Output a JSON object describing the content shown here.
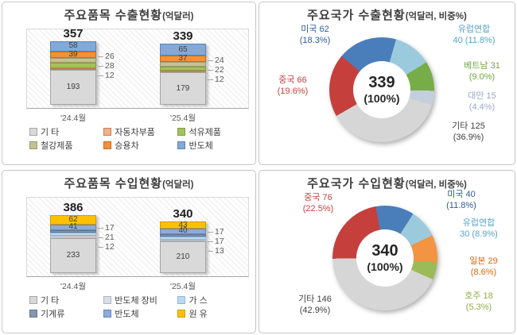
{
  "chart_data": [
    {
      "id": "export_items",
      "type": "bar",
      "stacked": true,
      "title": "주요품목 수출현황",
      "title_suffix": "(억달러)",
      "categories": [
        "'24.4월",
        "'25.4월"
      ],
      "totals": [
        "357",
        "339"
      ],
      "ylim": [
        0,
        420
      ],
      "grid": false,
      "legend_position": "bottom",
      "series": [
        {
          "name": "기 타",
          "color": "#d9d9d9",
          "border": "#a6a6a6",
          "values": [
            193,
            179
          ],
          "label_pos": "inside"
        },
        {
          "name": "자동차부품",
          "color": "#f0b18c",
          "border": "#cf7a52",
          "values": [
            12,
            12
          ],
          "label_pos": "side"
        },
        {
          "name": "석유제품",
          "color": "#a3c161",
          "border": "#7f9e3f",
          "values": [
            28,
            22
          ],
          "label_pos": "side"
        },
        {
          "name": "철강제품",
          "color": "#c6bf97",
          "border": "#a29a68",
          "values": [
            26,
            24
          ],
          "label_pos": "side"
        },
        {
          "name": "승용차",
          "color": "#f0913d",
          "border": "#c66c19",
          "values": [
            39,
            37
          ],
          "label_pos": "inside"
        },
        {
          "name": "반도체",
          "color": "#82a9d7",
          "border": "#5b85b6",
          "values": [
            58,
            65
          ],
          "label_pos": "inside"
        }
      ]
    },
    {
      "id": "export_countries",
      "type": "donut",
      "title": "주요국가 수출현황",
      "title_suffix": "(억달러, 비중%)",
      "center_value": "339",
      "center_sub": "(100%)",
      "start_angle": 310,
      "slices": [
        {
          "name": "미국",
          "value": 62,
          "pct": "18.3%",
          "color": "#4a7ebb",
          "text_color": "#2e5c9c",
          "line1": "미국 62",
          "line2": "(18.3%)"
        },
        {
          "name": "유럽연합",
          "value": 40,
          "pct": "11.8%",
          "color": "#9ccadd",
          "text_color": "#56a4c8",
          "line1": "유럽연합",
          "line2": "40 (11.8%)"
        },
        {
          "name": "베트남",
          "value": 31,
          "pct": "9.0%",
          "color": "#77ad49",
          "text_color": "#70a83f",
          "line1": "베트남 31",
          "line2": "(9.0%)"
        },
        {
          "name": "대만",
          "value": 15,
          "pct": "4.4%",
          "color": "#c3cfdc",
          "text_color": "#97a9c4",
          "line1": "대만 15",
          "line2": "(4.4%)"
        },
        {
          "name": "기타",
          "value": 125,
          "pct": "36.9%",
          "color": "#d6d6d6",
          "text_color": "#404040",
          "line1": "기타 125",
          "line2": "(36.9%)"
        },
        {
          "name": "중국",
          "value": 66,
          "pct": "19.6%",
          "color": "#c5403d",
          "text_color": "#c5403d",
          "line1": "중국 66",
          "line2": "(19.6%)"
        }
      ]
    },
    {
      "id": "import_items",
      "type": "bar",
      "stacked": true,
      "title": "주요품목 수입현황",
      "title_suffix": "(억달러)",
      "categories": [
        "'24.4월",
        "'25.4월"
      ],
      "totals": [
        "386",
        "340"
      ],
      "ylim": [
        0,
        500
      ],
      "grid": false,
      "legend_position": "bottom",
      "series": [
        {
          "name": "기 타",
          "color": "#d9d9d9",
          "border": "#a6a6a6",
          "values": [
            233,
            210
          ],
          "label_pos": "inside"
        },
        {
          "name": "반도체 장비",
          "color": "#d8dee6",
          "border": "#aeb8c4",
          "values": [
            12,
            13
          ],
          "label_pos": "side"
        },
        {
          "name": "가 스",
          "color": "#bdd7ee",
          "border": "#8fb9dc",
          "values": [
            21,
            17
          ],
          "label_pos": "side"
        },
        {
          "name": "기계류",
          "color": "#8496b0",
          "border": "#62748e",
          "values": [
            17,
            17
          ],
          "label_pos": "side"
        },
        {
          "name": "반도체",
          "color": "#8faadc",
          "border": "#6786bd",
          "values": [
            41,
            40
          ],
          "label_pos": "inside"
        },
        {
          "name": "원 유",
          "color": "#ffc000",
          "border": "#d09c00",
          "values": [
            62,
            43
          ],
          "label_pos": "inside"
        }
      ]
    },
    {
      "id": "import_countries",
      "type": "donut",
      "title": "주요국가 수입현황",
      "title_suffix": "(억달러, 비중%)",
      "center_value": "340",
      "center_sub": "(100%)",
      "start_angle": 350,
      "slices": [
        {
          "name": "미국",
          "value": 40,
          "pct": "11.8%",
          "color": "#4a7ebb",
          "text_color": "#2e5c9c",
          "line1": "미국 40",
          "line2": "(11.8%)"
        },
        {
          "name": "유럽연합",
          "value": 30,
          "pct": "8.9%",
          "color": "#9ccadd",
          "text_color": "#56a4c8",
          "line1": "유럽연합",
          "line2": "30 (8.9%)"
        },
        {
          "name": "일본",
          "value": 29,
          "pct": "8.6%",
          "color": "#f29441",
          "text_color": "#e3660a",
          "line1": "일본 29",
          "line2": "(8.6%)"
        },
        {
          "name": "호주",
          "value": 18,
          "pct": "5.3%",
          "color": "#9bbb59",
          "text_color": "#94ad49",
          "line1": "호주 18",
          "line2": "(5.3%)"
        },
        {
          "name": "기타",
          "value": 146,
          "pct": "42.9%",
          "color": "#d6d6d6",
          "text_color": "#404040",
          "line1": "기타 146",
          "line2": "(42.9%)"
        },
        {
          "name": "중국",
          "value": 76,
          "pct": "22.5%",
          "color": "#c5403d",
          "text_color": "#c5403d",
          "line1": "중국 76",
          "line2": "(22.5%)"
        }
      ]
    }
  ]
}
